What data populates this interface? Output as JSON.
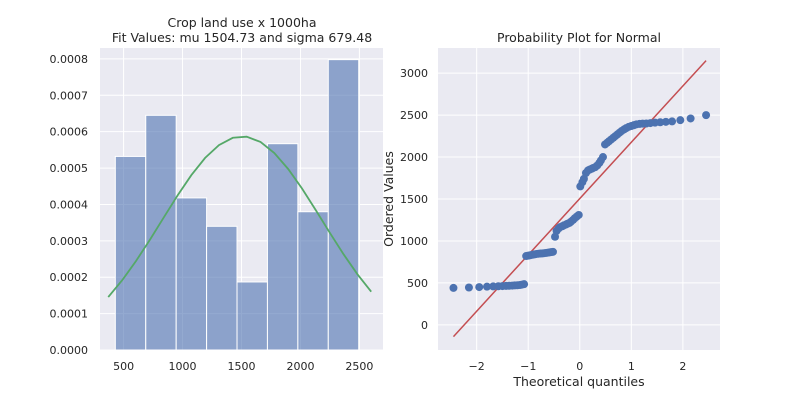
{
  "chart_data": [
    {
      "type": "bar",
      "title_line1": "Crop land use x 1000ha",
      "title_line2": "Fit Values: mu 1504.73 and sigma 679.48",
      "xlabel": "",
      "ylabel": "",
      "xlim": [
        300,
        2700
      ],
      "ylim": [
        0,
        0.00083
      ],
      "grid": true,
      "x_ticks": [
        500,
        1000,
        1500,
        2000,
        2500
      ],
      "y_ticks": [
        0.0,
        0.0001,
        0.0002,
        0.0003,
        0.0004,
        0.0005,
        0.0006,
        0.0007,
        0.0008
      ],
      "y_tick_labels": [
        "0.0000",
        "0.0001",
        "0.0002",
        "0.0003",
        "0.0004",
        "0.0005",
        "0.0006",
        "0.0007",
        "0.0008"
      ],
      "bins": [
        [
          430,
          688,
          0.000532
        ],
        [
          688,
          946,
          0.000645
        ],
        [
          946,
          1204,
          0.000418
        ],
        [
          1204,
          1462,
          0.00034
        ],
        [
          1462,
          1720,
          0.000187
        ],
        [
          1720,
          1978,
          0.000567
        ],
        [
          1978,
          2236,
          0.00038
        ],
        [
          2236,
          2494,
          0.000798
        ]
      ],
      "fit_curve": {
        "type": "normal_pdf",
        "mu": 1504.73,
        "sigma": 679.48,
        "x_range": [
          370,
          2600
        ],
        "points": 20
      },
      "colors": {
        "bar": "#4c72b0",
        "curve": "#55a868",
        "background": "#eaeaf2",
        "grid": "#ffffff"
      }
    },
    {
      "type": "scatter",
      "title": "Probability Plot for Normal",
      "xlabel": "Theoretical quantiles",
      "ylabel": "Ordered Values",
      "xlim": [
        -2.75,
        2.72
      ],
      "ylim": [
        -300,
        3300
      ],
      "grid": true,
      "x_ticks": [
        -2,
        -1,
        0,
        1,
        2
      ],
      "y_ticks": [
        0,
        500,
        1000,
        1500,
        2000,
        2500,
        3000
      ],
      "points": [
        [
          -2.45,
          440
        ],
        [
          -2.15,
          445
        ],
        [
          -1.95,
          450
        ],
        [
          -1.8,
          455
        ],
        [
          -1.68,
          458
        ],
        [
          -1.58,
          460
        ],
        [
          -1.5,
          462
        ],
        [
          -1.43,
          464
        ],
        [
          -1.37,
          466
        ],
        [
          -1.31,
          468
        ],
        [
          -1.26,
          470
        ],
        [
          -1.21,
          472
        ],
        [
          -1.16,
          475
        ],
        [
          -1.12,
          480
        ],
        [
          -1.08,
          485
        ],
        [
          -1.04,
          820
        ],
        [
          -1.0,
          825
        ],
        [
          -0.96,
          830
        ],
        [
          -0.92,
          835
        ],
        [
          -0.88,
          840
        ],
        [
          -0.84,
          845
        ],
        [
          -0.8,
          848
        ],
        [
          -0.76,
          850
        ],
        [
          -0.72,
          852
        ],
        [
          -0.68,
          855
        ],
        [
          -0.64,
          858
        ],
        [
          -0.6,
          862
        ],
        [
          -0.56,
          866
        ],
        [
          -0.52,
          870
        ],
        [
          -0.48,
          1050
        ],
        [
          -0.45,
          1120
        ],
        [
          -0.41,
          1150
        ],
        [
          -0.38,
          1165
        ],
        [
          -0.34,
          1175
        ],
        [
          -0.31,
          1185
        ],
        [
          -0.27,
          1195
        ],
        [
          -0.24,
          1205
        ],
        [
          -0.2,
          1215
        ],
        [
          -0.17,
          1230
        ],
        [
          -0.13,
          1250
        ],
        [
          -0.1,
          1270
        ],
        [
          -0.06,
          1290
        ],
        [
          -0.02,
          1310
        ],
        [
          0.01,
          1650
        ],
        [
          0.05,
          1700
        ],
        [
          0.08,
          1740
        ],
        [
          0.12,
          1810
        ],
        [
          0.16,
          1840
        ],
        [
          0.19,
          1850
        ],
        [
          0.23,
          1860
        ],
        [
          0.26,
          1870
        ],
        [
          0.3,
          1880
        ],
        [
          0.34,
          1900
        ],
        [
          0.38,
          1930
        ],
        [
          0.41,
          1960
        ],
        [
          0.45,
          2000
        ],
        [
          0.49,
          2150
        ],
        [
          0.53,
          2170
        ],
        [
          0.57,
          2190
        ],
        [
          0.61,
          2210
        ],
        [
          0.65,
          2230
        ],
        [
          0.69,
          2250
        ],
        [
          0.73,
          2270
        ],
        [
          0.77,
          2290
        ],
        [
          0.81,
          2310
        ],
        [
          0.86,
          2330
        ],
        [
          0.9,
          2345
        ],
        [
          0.95,
          2360
        ],
        [
          1.0,
          2370
        ],
        [
          1.05,
          2380
        ],
        [
          1.1,
          2390
        ],
        [
          1.16,
          2395
        ],
        [
          1.22,
          2398
        ],
        [
          1.29,
          2400
        ],
        [
          1.37,
          2405
        ],
        [
          1.46,
          2410
        ],
        [
          1.56,
          2415
        ],
        [
          1.67,
          2420
        ],
        [
          1.79,
          2425
        ],
        [
          1.95,
          2440
        ],
        [
          2.15,
          2460
        ],
        [
          2.45,
          2500
        ]
      ],
      "fit_line": {
        "x": [
          -2.45,
          2.45
        ],
        "y": [
          -140,
          3150
        ]
      },
      "colors": {
        "point": "#4c72b0",
        "line": "#c44e52",
        "background": "#eaeaf2",
        "grid": "#ffffff"
      }
    }
  ]
}
